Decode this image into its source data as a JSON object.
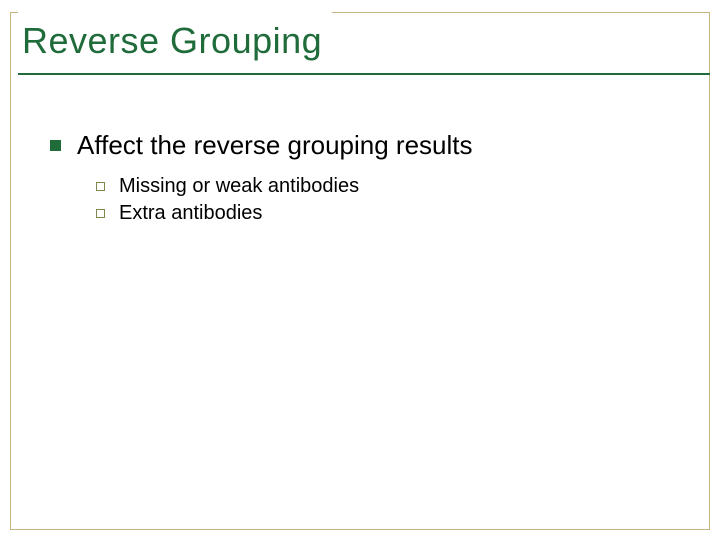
{
  "colors": {
    "outer_border": "#c5b47f",
    "title_underline": "#1f6b3a",
    "title_text": "#1f6b3a",
    "lvl1_bullet": "#1f6b3a",
    "lvl2_bullet_border": "#7b8a4a",
    "body_text": "#000000"
  },
  "title": "Reverse Grouping",
  "bullets": [
    {
      "text": "Affect the reverse grouping results",
      "children": [
        {
          "text": "Missing or weak antibodies"
        },
        {
          "text": "Extra antibodies"
        }
      ]
    }
  ]
}
